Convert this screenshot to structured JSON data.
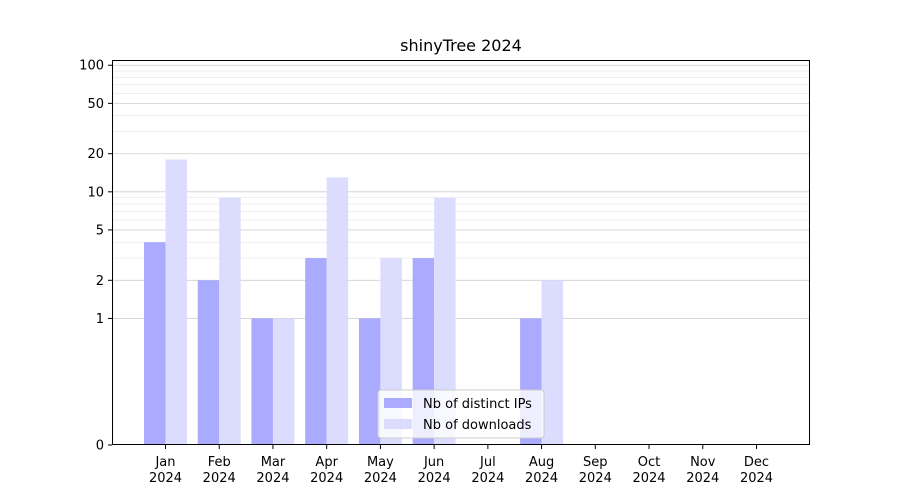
{
  "chart_data": {
    "type": "bar",
    "title": "shinyTree 2024",
    "xlabel": "",
    "ylabel": "",
    "yscale": "symlog",
    "ylim": [
      0,
      110
    ],
    "yticks": [
      0,
      1,
      2,
      5,
      10,
      20,
      50,
      100
    ],
    "ytick_labels": [
      "0",
      "1",
      "2",
      "5",
      "10",
      "20",
      "50",
      "100"
    ],
    "categories": [
      {
        "month": "Jan",
        "year": "2024"
      },
      {
        "month": "Feb",
        "year": "2024"
      },
      {
        "month": "Mar",
        "year": "2024"
      },
      {
        "month": "Apr",
        "year": "2024"
      },
      {
        "month": "May",
        "year": "2024"
      },
      {
        "month": "Jun",
        "year": "2024"
      },
      {
        "month": "Jul",
        "year": "2024"
      },
      {
        "month": "Aug",
        "year": "2024"
      },
      {
        "month": "Sep",
        "year": "2024"
      },
      {
        "month": "Oct",
        "year": "2024"
      },
      {
        "month": "Nov",
        "year": "2024"
      },
      {
        "month": "Dec",
        "year": "2024"
      }
    ],
    "series": [
      {
        "name": "Nb of distinct IPs",
        "color": "#aaaaff",
        "values": [
          4,
          2,
          1,
          3,
          1,
          3,
          0,
          1,
          0,
          0,
          0,
          0
        ]
      },
      {
        "name": "Nb of downloads",
        "color": "#dcdcff",
        "values": [
          18,
          9,
          1,
          13,
          3,
          9,
          0,
          2,
          0,
          0,
          0,
          0
        ]
      }
    ],
    "grid": true,
    "legend_position": "lower-center"
  }
}
